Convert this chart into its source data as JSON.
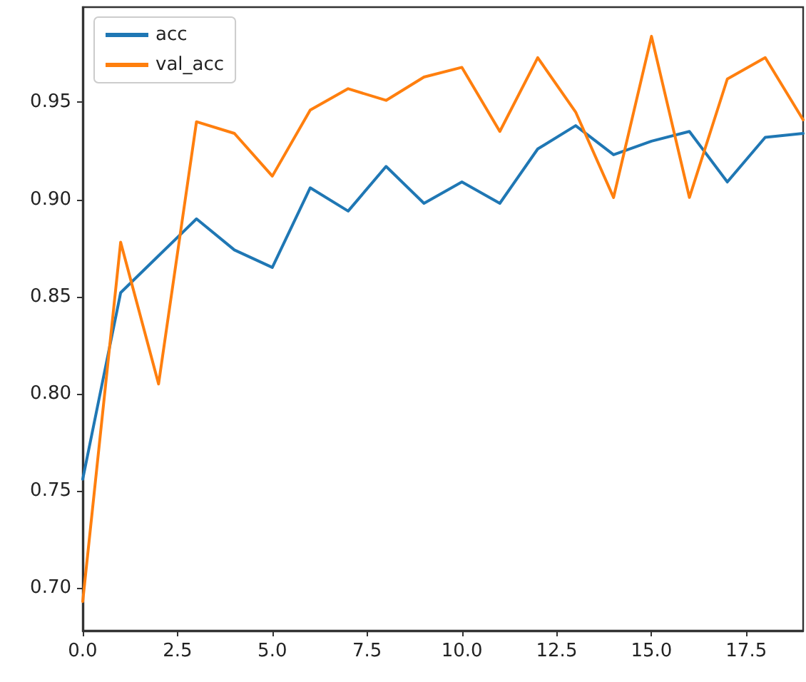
{
  "chart_data": {
    "type": "line",
    "x": [
      0,
      1,
      2,
      3,
      4,
      5,
      6,
      7,
      8,
      9,
      10,
      11,
      12,
      13,
      14,
      15,
      16,
      17,
      18,
      19
    ],
    "series": [
      {
        "name": "acc",
        "color": "#1f77b4",
        "values": [
          0.756,
          0.852,
          0.871,
          0.89,
          0.874,
          0.865,
          0.906,
          0.894,
          0.917,
          0.898,
          0.909,
          0.898,
          0.926,
          0.938,
          0.923,
          0.93,
          0.935,
          0.909,
          0.932,
          0.934
        ]
      },
      {
        "name": "val_acc",
        "color": "#ff7f0e",
        "values": [
          0.693,
          0.878,
          0.805,
          0.94,
          0.934,
          0.912,
          0.946,
          0.957,
          0.951,
          0.963,
          0.968,
          0.935,
          0.973,
          0.945,
          0.901,
          0.984,
          0.901,
          0.962,
          0.973,
          0.941
        ]
      }
    ],
    "xlim": [
      0,
      19
    ],
    "xticks": [
      {
        "value": 0,
        "label": "0.0"
      },
      2.5,
      {
        "value": 5,
        "label": "5.0"
      },
      7.5,
      {
        "value": 10,
        "label": "10.0"
      },
      12.5,
      {
        "value": 15,
        "label": "15.0"
      },
      17.5
    ],
    "ylim": [
      0.678,
      0.999
    ],
    "yticks": [
      {
        "value": 0.7,
        "label": "0.70"
      },
      0.75,
      {
        "value": 0.8,
        "label": "0.80"
      },
      0.85,
      {
        "value": 0.9,
        "label": "0.90"
      },
      0.95
    ],
    "legend": "top left"
  }
}
